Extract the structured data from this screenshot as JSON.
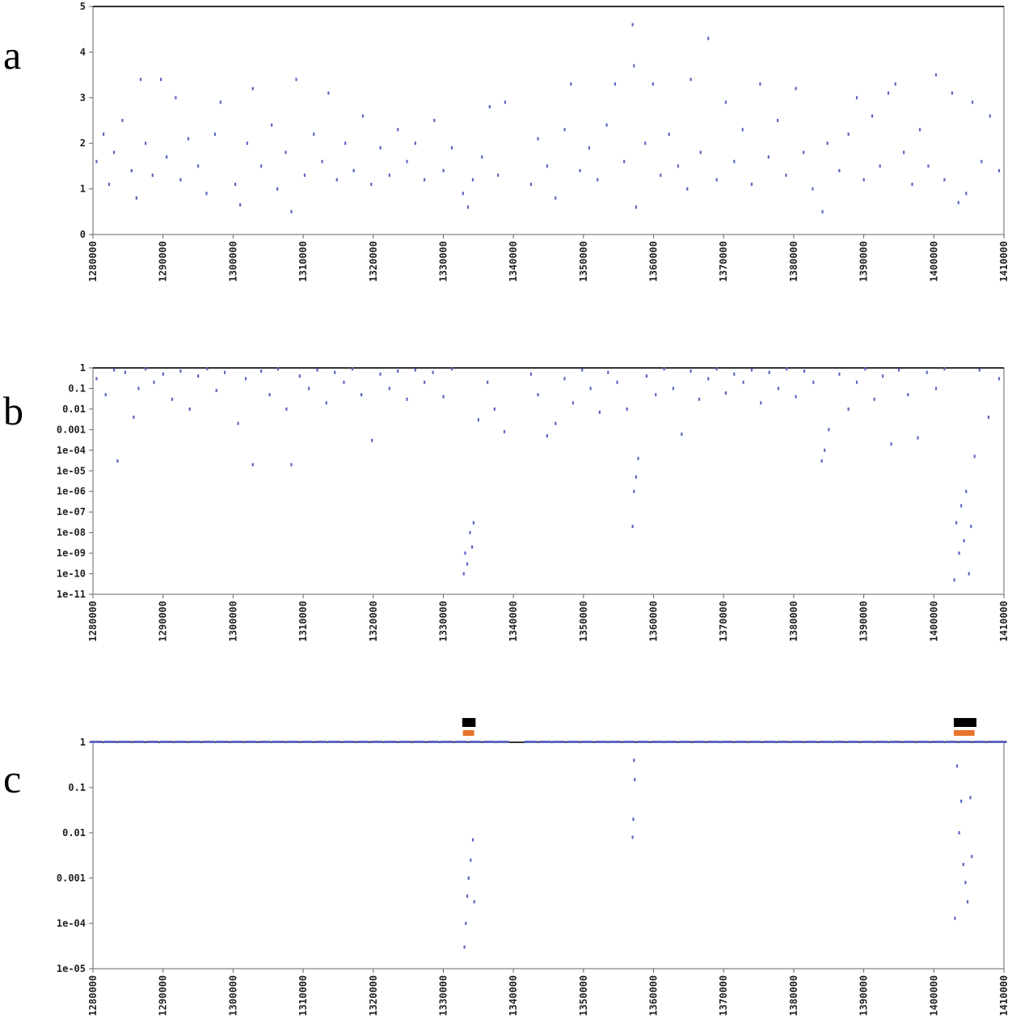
{
  "chart_data": [
    {
      "type": "scatter",
      "label": "a",
      "color": "#5b67c0",
      "log_scale": false,
      "xlim": [
        1280000,
        1410000
      ],
      "ylim": [
        0,
        5
      ],
      "xticks": [
        1280000,
        1290000,
        1300000,
        1310000,
        1320000,
        1330000,
        1340000,
        1350000,
        1360000,
        1370000,
        1380000,
        1390000,
        1400000,
        1410000
      ],
      "yticks": [
        0,
        1,
        2,
        3,
        4,
        5
      ],
      "x": [
        1280500,
        1281500,
        1282300,
        1283000,
        1284200,
        1285500,
        1286200,
        1286800,
        1287500,
        1288500,
        1289700,
        1290500,
        1291800,
        1292500,
        1293600,
        1295000,
        1296200,
        1297400,
        1298200,
        1300300,
        1301000,
        1302000,
        1302800,
        1304000,
        1305500,
        1306300,
        1307500,
        1308300,
        1309000,
        1310200,
        1311500,
        1312700,
        1313600,
        1314800,
        1316000,
        1317200,
        1318500,
        1319700,
        1321000,
        1322300,
        1323500,
        1324800,
        1326000,
        1327300,
        1328700,
        1330000,
        1331200,
        1332800,
        1333500,
        1334200,
        1335500,
        1336600,
        1337800,
        1338800,
        1342500,
        1343500,
        1344800,
        1346000,
        1347300,
        1348200,
        1349500,
        1350800,
        1352000,
        1353300,
        1354500,
        1355800,
        1357000,
        1357200,
        1357500,
        1358800,
        1359900,
        1361000,
        1362200,
        1363500,
        1364800,
        1365300,
        1366700,
        1367800,
        1369000,
        1370300,
        1371500,
        1372700,
        1374000,
        1375200,
        1376400,
        1377700,
        1378900,
        1380300,
        1381400,
        1382700,
        1384100,
        1384800,
        1386500,
        1387800,
        1389000,
        1390000,
        1391200,
        1392300,
        1393500,
        1394500,
        1395700,
        1396900,
        1398000,
        1399200,
        1400300,
        1401500,
        1402600,
        1403500,
        1404600,
        1405500,
        1406800,
        1408000,
        1409300
      ],
      "values": [
        1.6,
        2.2,
        1.1,
        1.8,
        2.5,
        1.4,
        0.8,
        3.4,
        2.0,
        1.3,
        3.4,
        1.7,
        3.0,
        1.2,
        2.1,
        1.5,
        0.9,
        2.2,
        2.9,
        1.1,
        0.65,
        2.0,
        3.2,
        1.5,
        2.4,
        1.0,
        1.8,
        0.5,
        3.4,
        1.3,
        2.2,
        1.6,
        3.1,
        1.2,
        2.0,
        1.4,
        2.6,
        1.1,
        1.9,
        1.3,
        2.3,
        1.6,
        2.0,
        1.2,
        2.5,
        1.4,
        1.9,
        0.9,
        0.6,
        1.2,
        1.7,
        2.8,
        1.3,
        2.9,
        1.1,
        2.1,
        1.5,
        0.8,
        2.3,
        3.3,
        1.4,
        1.9,
        1.2,
        2.4,
        3.3,
        1.6,
        4.6,
        3.7,
        0.6,
        2.0,
        3.3,
        1.3,
        2.2,
        1.5,
        1.0,
        3.4,
        1.8,
        4.3,
        1.2,
        2.9,
        1.6,
        2.3,
        1.1,
        3.3,
        1.7,
        2.5,
        1.3,
        3.2,
        1.8,
        1.0,
        0.5,
        2.0,
        1.4,
        2.2,
        3.0,
        1.2,
        2.6,
        1.5,
        3.1,
        3.3,
        1.8,
        1.1,
        2.3,
        1.5,
        3.5,
        1.2,
        3.1,
        0.7,
        0.9,
        2.9,
        1.6,
        2.6,
        1.4
      ]
    },
    {
      "type": "scatter",
      "label": "b",
      "color": "#5b67c0",
      "log_scale": true,
      "xlim": [
        1280000,
        1410000
      ],
      "ylim": [
        1e-11,
        1
      ],
      "xticks": [
        1280000,
        1290000,
        1300000,
        1310000,
        1320000,
        1330000,
        1340000,
        1350000,
        1360000,
        1370000,
        1380000,
        1390000,
        1400000,
        1410000
      ],
      "yticks": [
        1,
        0.1,
        0.01,
        0.001,
        {
          "value": 0.0001,
          "label": "1e-04"
        },
        {
          "value": 1e-05,
          "label": "1e-05"
        },
        {
          "value": 1e-06,
          "label": "1e-06"
        },
        {
          "value": 1e-07,
          "label": "1e-07"
        },
        {
          "value": 1e-08,
          "label": "1e-08"
        },
        {
          "value": 1e-09,
          "label": "1e-09"
        },
        {
          "value": 1e-10,
          "label": "1e-10"
        },
        {
          "value": 1e-11,
          "label": "1e-11"
        }
      ],
      "x": [
        1280500,
        1281800,
        1283000,
        1283500,
        1284600,
        1285800,
        1286500,
        1287500,
        1288700,
        1290000,
        1291300,
        1292500,
        1293800,
        1295000,
        1296300,
        1297600,
        1298800,
        1300700,
        1301800,
        1302800,
        1304000,
        1305200,
        1306400,
        1307600,
        1308300,
        1309500,
        1310800,
        1312000,
        1313300,
        1314500,
        1315800,
        1317000,
        1318300,
        1319800,
        1321000,
        1322300,
        1323500,
        1324800,
        1326000,
        1327300,
        1328500,
        1330000,
        1331200,
        1332900,
        1333100,
        1333400,
        1333800,
        1334100,
        1334300,
        1335000,
        1336300,
        1337300,
        1338700,
        1342500,
        1343500,
        1344800,
        1346000,
        1347300,
        1348500,
        1349800,
        1351000,
        1352300,
        1353500,
        1354800,
        1356200,
        1357000,
        1357200,
        1357500,
        1357800,
        1359000,
        1360300,
        1361500,
        1362800,
        1364000,
        1365300,
        1366500,
        1367800,
        1369000,
        1370300,
        1371500,
        1372800,
        1374000,
        1375300,
        1376500,
        1377800,
        1379000,
        1380300,
        1381500,
        1382800,
        1384000,
        1384400,
        1385000,
        1386500,
        1387800,
        1389000,
        1390200,
        1391500,
        1392700,
        1393900,
        1395000,
        1396300,
        1397700,
        1399000,
        1400300,
        1401500,
        1402900,
        1403200,
        1403600,
        1403900,
        1404300,
        1404600,
        1405000,
        1405300,
        1405800,
        1406500,
        1407800,
        1409300
      ],
      "values": [
        0.3,
        0.05,
        0.8,
        3e-05,
        0.6,
        0.004,
        0.1,
        0.9,
        0.2,
        0.5,
        0.03,
        0.7,
        0.01,
        0.4,
        0.9,
        0.08,
        0.6,
        0.002,
        0.3,
        2e-05,
        0.7,
        0.05,
        0.9,
        0.01,
        2e-05,
        0.4,
        0.1,
        0.8,
        0.02,
        0.6,
        0.2,
        0.9,
        0.05,
        0.0003,
        0.5,
        0.1,
        0.7,
        0.03,
        0.8,
        0.2,
        0.6,
        0.04,
        0.9,
        1e-10,
        1e-09,
        3e-10,
        1e-08,
        2e-09,
        3e-08,
        0.003,
        0.2,
        0.01,
        0.0008,
        0.5,
        0.05,
        0.0005,
        0.002,
        0.3,
        0.02,
        0.8,
        0.1,
        0.007,
        0.6,
        0.2,
        0.01,
        2e-08,
        1e-06,
        5e-06,
        4e-05,
        0.4,
        0.05,
        0.9,
        0.1,
        0.0006,
        0.7,
        0.03,
        0.3,
        0.9,
        0.06,
        0.5,
        0.2,
        0.8,
        0.02,
        0.6,
        0.1,
        0.9,
        0.04,
        0.7,
        0.2,
        3e-05,
        0.0001,
        0.001,
        0.5,
        0.01,
        0.2,
        0.9,
        0.03,
        0.4,
        0.0002,
        0.8,
        0.05,
        0.0004,
        0.6,
        0.1,
        0.9,
        5e-11,
        3e-08,
        1e-09,
        2e-07,
        4e-09,
        1e-06,
        1e-10,
        2e-08,
        5e-05,
        0.8,
        0.004,
        0.3
      ]
    },
    {
      "type": "scatter",
      "label": "c",
      "color": "#5b67c0",
      "log_scale": true,
      "xlim": [
        1280000,
        1410000
      ],
      "ylim": [
        1e-05,
        1
      ],
      "xticks": [
        1280000,
        1290000,
        1300000,
        1310000,
        1320000,
        1330000,
        1340000,
        1350000,
        1360000,
        1370000,
        1380000,
        1390000,
        1400000,
        1410000
      ],
      "yticks": [
        1,
        0.1,
        0.01,
        0.001,
        {
          "value": 0.0001,
          "label": "1e-04"
        },
        {
          "value": 1e-05,
          "label": "1e-05"
        }
      ],
      "regions": [
        {
          "start": 1332700,
          "end": 1334600,
          "color": "#000000"
        },
        {
          "start": 1332800,
          "end": 1334400,
          "color": "#e8742a"
        },
        {
          "start": 1402850,
          "end": 1406080,
          "color": "#000000"
        },
        {
          "start": 1402850,
          "end": 1405800,
          "color": "#e8742a"
        }
      ],
      "x": [
        1280500,
        1282500,
        1284500,
        1286500,
        1288500,
        1290500,
        1292500,
        1294500,
        1296500,
        1298500,
        1300500,
        1302500,
        1304500,
        1306500,
        1308500,
        1310500,
        1312500,
        1314500,
        1316500,
        1318500,
        1320500,
        1322500,
        1324500,
        1326500,
        1328500,
        1330500,
        1332500,
        1334500,
        1336500,
        1338500,
        1342500,
        1344500,
        1346500,
        1348500,
        1350500,
        1352500,
        1354500,
        1356500,
        1358500,
        1360500,
        1362500,
        1364500,
        1366500,
        1368500,
        1370500,
        1372500,
        1374500,
        1376500,
        1378500,
        1380500,
        1382500,
        1384500,
        1386500,
        1388500,
        1390500,
        1392500,
        1394500,
        1396500,
        1398500,
        1400500,
        1402500,
        1404500,
        1406500,
        1408500,
        1409500,
        1333000,
        1333200,
        1333400,
        1333600,
        1333900,
        1334200,
        1334400,
        1357000,
        1357100,
        1357200,
        1357300,
        1403000,
        1403300,
        1403600,
        1403900,
        1404200,
        1404500,
        1404800,
        1405200,
        1405400
      ],
      "values": [
        1,
        1,
        1,
        1,
        1,
        1,
        1,
        1,
        1,
        1,
        1,
        1,
        1,
        1,
        1,
        1,
        1,
        1,
        1,
        1,
        1,
        1,
        1,
        1,
        1,
        1,
        1,
        1,
        1,
        1,
        1,
        1,
        1,
        1,
        1,
        1,
        1,
        1,
        1,
        1,
        1,
        1,
        1,
        1,
        1,
        1,
        1,
        1,
        1,
        1,
        1,
        1,
        1,
        1,
        1,
        1,
        1,
        1,
        1,
        1,
        1,
        1,
        1,
        1,
        1,
        3e-05,
        0.0001,
        0.0004,
        0.001,
        0.0025,
        0.007,
        0.0003,
        0.008,
        0.02,
        0.4,
        0.15,
        0.00013,
        0.3,
        0.01,
        0.05,
        0.002,
        0.0008,
        0.0003,
        0.06,
        0.003
      ]
    }
  ]
}
